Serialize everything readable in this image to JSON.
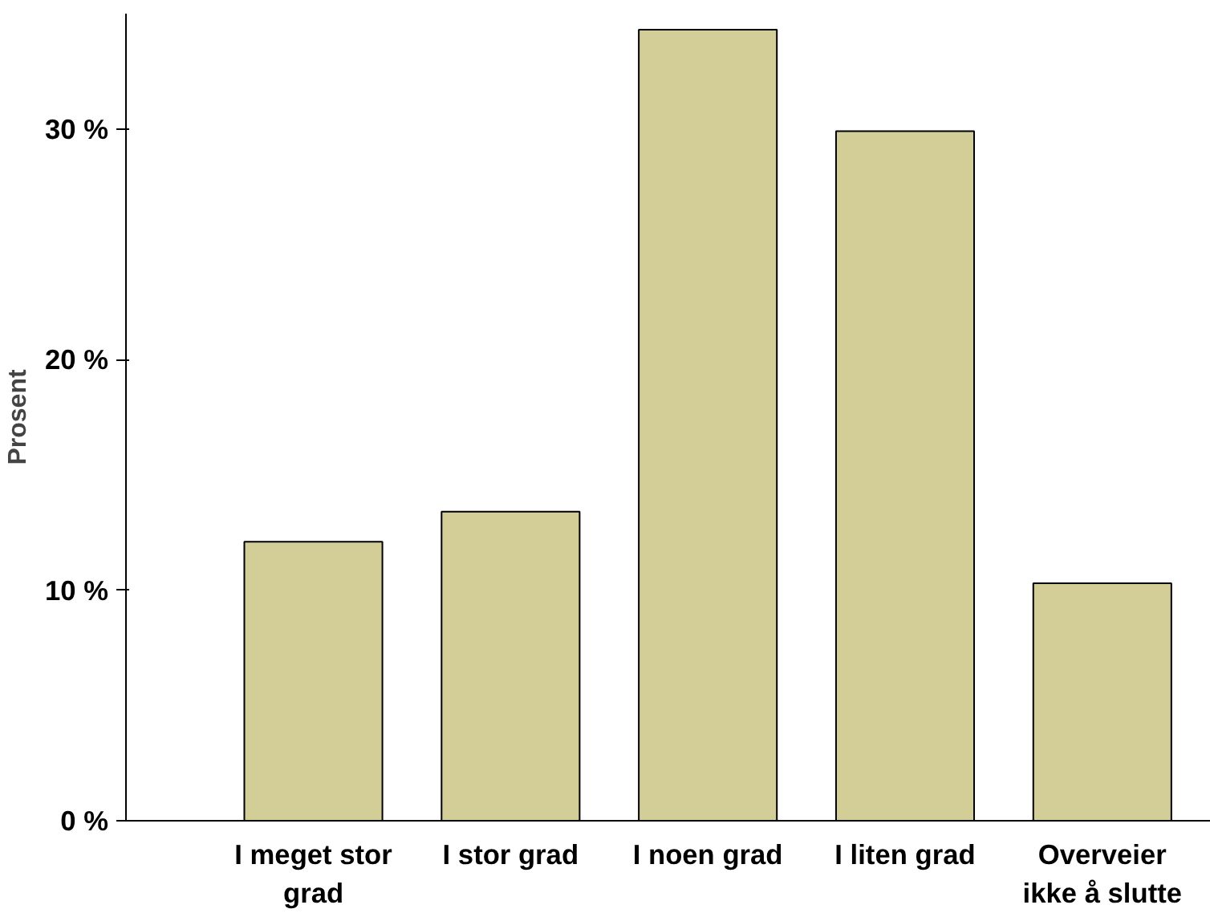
{
  "chart_data": {
    "type": "bar",
    "ylabel": "Prosent",
    "categories": [
      "I meget stor\ngrad",
      "I stor grad",
      "I noen grad",
      "I liten grad",
      "Overveier\nikke å slutte"
    ],
    "values": [
      12.1,
      13.4,
      34.3,
      29.9,
      10.3
    ],
    "color": "#d3ce98",
    "ylim": [
      0,
      35
    ],
    "yticks": [
      {
        "value": 0,
        "label": "0 %"
      },
      {
        "value": 10,
        "label": "10 %"
      },
      {
        "value": 20,
        "label": "20 %"
      },
      {
        "value": 30,
        "label": "30 %"
      }
    ],
    "grid": false
  }
}
